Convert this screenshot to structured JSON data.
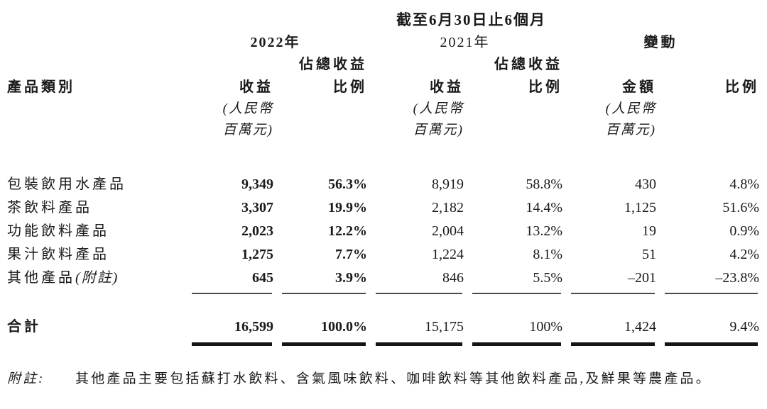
{
  "table": {
    "period_header": "截至6月30日止6個月",
    "year_2022": "2022年",
    "year_2021": "2021年",
    "change_header": "變動",
    "share_header": "佔總收益",
    "category_header": "產品類別",
    "col_headers": [
      "收益",
      "比例",
      "收益",
      "比例",
      "金額",
      "比例"
    ],
    "unit_line1": "(人民幣",
    "unit_line2": "百萬元)",
    "rows": [
      {
        "label": "包裝飲用水產品",
        "values": [
          "9,349",
          "56.3%",
          "8,919",
          "58.8%",
          "430",
          "4.8%"
        ]
      },
      {
        "label": "茶飲料產品",
        "values": [
          "3,307",
          "19.9%",
          "2,182",
          "14.4%",
          "1,125",
          "51.6%"
        ]
      },
      {
        "label": "功能飲料產品",
        "values": [
          "2,023",
          "12.2%",
          "2,004",
          "13.2%",
          "19",
          "0.9%"
        ]
      },
      {
        "label": "果汁飲料產品",
        "values": [
          "1,275",
          "7.7%",
          "1,224",
          "8.1%",
          "51",
          "4.2%"
        ]
      },
      {
        "label": "其他產品",
        "label_note": "(附註)",
        "values": [
          "645",
          "3.9%",
          "846",
          "5.5%",
          "–201",
          "–23.8%"
        ]
      }
    ],
    "total": {
      "label": "合計",
      "values": [
        "16,599",
        "100.0%",
        "15,175",
        "100%",
        "1,424",
        "9.4%"
      ]
    }
  },
  "footnote": {
    "label": "附註:",
    "text": "其他產品主要包括蘇打水飲料、含氣風味飲料、咖啡飲料等其他飲料產品,及鮮果等農產品。"
  }
}
